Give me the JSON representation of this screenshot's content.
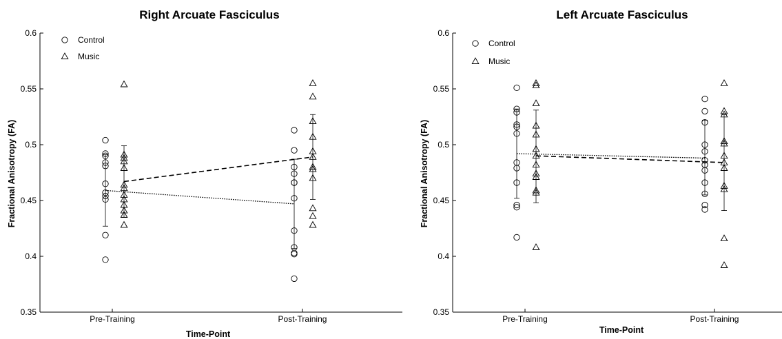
{
  "chart_data": [
    {
      "type": "scatter",
      "title": "Right Arcuate Fasciculus",
      "xlabel": "Time-Point",
      "ylabel": "Fractional Anisotropy (FA)",
      "categories": [
        "Pre-Training",
        "Post-Training"
      ],
      "ylim": [
        0.35,
        0.6
      ],
      "yticks": [
        "0.35",
        "0.4",
        "0.45",
        "0.5",
        "0.55",
        "0.6"
      ],
      "legend_position": "top-left",
      "series": [
        {
          "name": "Control",
          "marker": "circle",
          "line_style": "dotted",
          "mean": [
            0.459,
            0.447
          ],
          "error": [
            [
              0.427,
              0.491
            ],
            [
              0.407,
              0.487
            ]
          ],
          "points": [
            [
              0.504,
              0.492,
              0.49,
              0.484,
              0.481,
              0.465,
              0.457,
              0.454,
              0.451,
              0.419,
              0.397
            ],
            [
              0.513,
              0.495,
              0.48,
              0.474,
              0.466,
              0.466,
              0.452,
              0.423,
              0.408,
              0.403,
              0.402,
              0.38
            ]
          ]
        },
        {
          "name": "Music",
          "marker": "triangle",
          "line_style": "dashed",
          "mean": [
            0.467,
            0.489
          ],
          "error": [
            [
              0.435,
              0.499
            ],
            [
              0.451,
              0.527
            ]
          ],
          "points": [
            [
              0.554,
              0.491,
              0.488,
              0.485,
              0.479,
              0.464,
              0.461,
              0.455,
              0.451,
              0.446,
              0.441,
              0.437,
              0.428
            ],
            [
              0.555,
              0.543,
              0.521,
              0.507,
              0.494,
              0.489,
              0.48,
              0.478,
              0.47,
              0.443,
              0.436,
              0.428
            ]
          ]
        }
      ]
    },
    {
      "type": "scatter",
      "title": "Left Arcuate Fasciculus",
      "xlabel": "Time-Point",
      "ylabel": "Fractional Anisotropy (FA)",
      "categories": [
        "Pre-Training",
        "Post-Training"
      ],
      "ylim": [
        0.35,
        0.6
      ],
      "yticks": [
        "0.35",
        "0.4",
        "0.45",
        "0.5",
        "0.55",
        "0.6"
      ],
      "legend_position": "top-left",
      "series": [
        {
          "name": "Control",
          "marker": "circle",
          "line_style": "dotted",
          "mean": [
            0.492,
            0.488
          ],
          "error": [
            [
              0.452,
              0.532
            ],
            [
              0.455,
              0.522
            ]
          ],
          "points": [
            [
              0.551,
              0.532,
              0.529,
              0.518,
              0.516,
              0.51,
              0.484,
              0.479,
              0.466,
              0.446,
              0.444,
              0.417
            ],
            [
              0.541,
              0.53,
              0.52,
              0.5,
              0.494,
              0.486,
              0.482,
              0.477,
              0.466,
              0.456,
              0.446,
              0.442
            ]
          ]
        },
        {
          "name": "Music",
          "marker": "triangle",
          "line_style": "dashed",
          "mean": [
            0.49,
            0.484
          ],
          "error": [
            [
              0.448,
              0.531
            ],
            [
              0.441,
              0.527
            ]
          ],
          "points": [
            [
              0.555,
              0.553,
              0.537,
              0.517,
              0.509,
              0.496,
              0.49,
              0.482,
              0.474,
              0.471,
              0.459,
              0.457,
              0.408
            ],
            [
              0.555,
              0.53,
              0.527,
              0.503,
              0.501,
              0.49,
              0.484,
              0.479,
              0.463,
              0.46,
              0.416,
              0.392
            ]
          ]
        }
      ]
    }
  ]
}
